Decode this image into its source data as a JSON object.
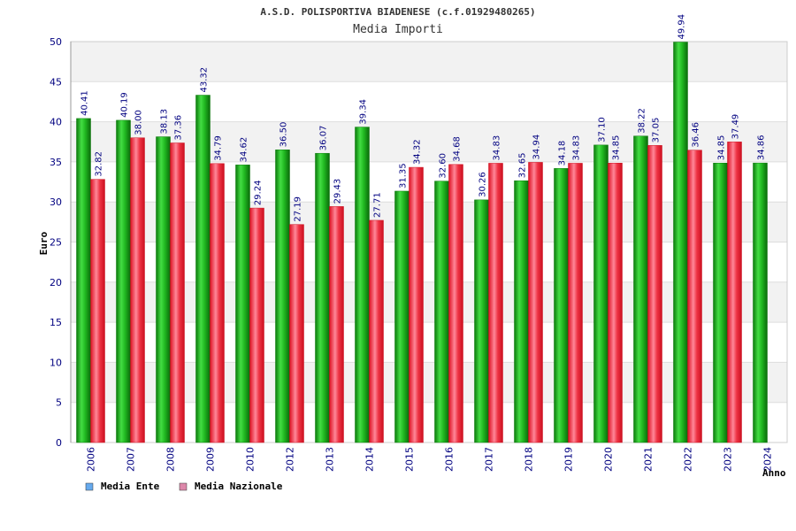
{
  "chart_data": {
    "type": "bar",
    "title": "A.S.D. POLISPORTIVA BIADENESE (c.f.01929480265)",
    "subtitle": "Media Importi",
    "ylabel": "Euro",
    "xlabel": "Anno",
    "ylim": [
      0,
      50
    ],
    "yticks": [
      0,
      5,
      10,
      15,
      20,
      25,
      30,
      35,
      40,
      45,
      50
    ],
    "grid": true,
    "legend_position": "bottom-left",
    "categories": [
      "2006",
      "2007",
      "2008",
      "2009",
      "2010",
      "2012",
      "2013",
      "2014",
      "2015",
      "2016",
      "2017",
      "2018",
      "2019",
      "2020",
      "2021",
      "2022",
      "2023",
      "2024"
    ],
    "series": [
      {
        "name": "Media Ente",
        "color": "#22bb22",
        "legend_color": "#66aaee",
        "values": [
          40.41,
          40.19,
          38.13,
          43.32,
          34.62,
          36.5,
          36.07,
          39.34,
          31.35,
          32.6,
          30.26,
          32.65,
          34.18,
          37.1,
          38.22,
          49.94,
          34.85,
          34.86
        ],
        "labels": [
          "40.41",
          "40.19",
          "38.13",
          "43.32",
          "34.62",
          "36.50",
          "36.07",
          "39.34",
          "31.35",
          "32.60",
          "30.26",
          "32.65",
          "34.18",
          "37.10",
          "38.22",
          "49.94",
          "34.85",
          "34.86"
        ]
      },
      {
        "name": "Media Nazionale",
        "color": "#ee2233",
        "legend_color": "#dd88aa",
        "values": [
          32.82,
          38.0,
          37.36,
          34.79,
          29.24,
          27.19,
          29.43,
          27.71,
          34.32,
          34.68,
          34.83,
          34.94,
          34.83,
          34.85,
          37.05,
          36.46,
          37.49,
          null
        ],
        "labels": [
          "32.82",
          "38.00",
          "37.36",
          "34.79",
          "29.24",
          "27.19",
          "29.43",
          "27.71",
          "34.32",
          "34.68",
          "34.83",
          "34.94",
          "34.83",
          "34.85",
          "37.05",
          "36.46",
          "37.49",
          ""
        ]
      }
    ]
  }
}
